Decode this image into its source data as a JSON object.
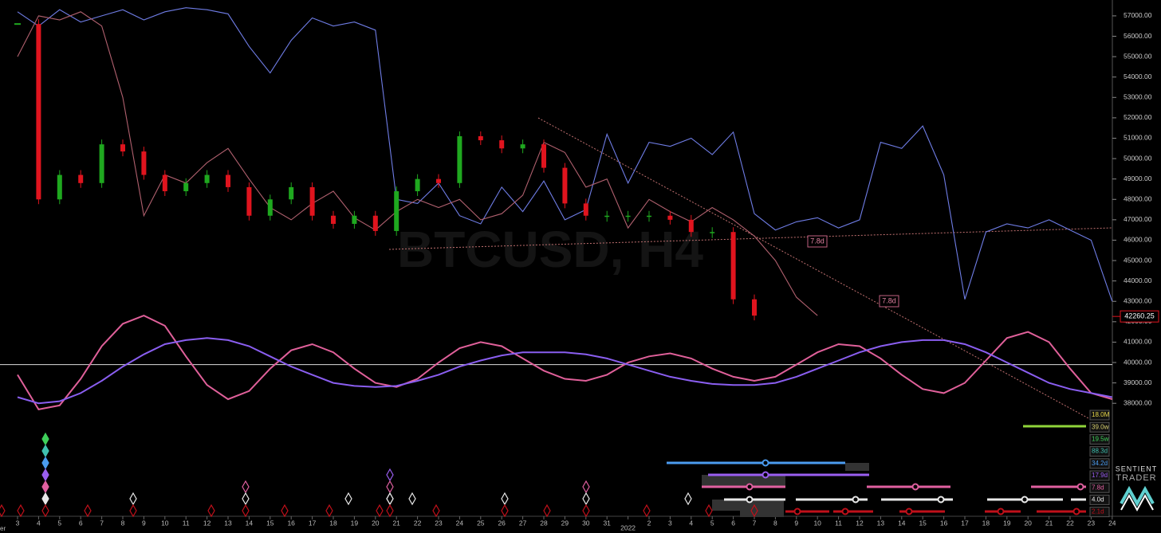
{
  "chart_data": {
    "type": "candlestick",
    "title": "BTCUSD, H4",
    "x_edge_label": "er",
    "categories": [
      "3",
      "4",
      "5",
      "6",
      "7",
      "8",
      "9",
      "10",
      "11",
      "12",
      "13",
      "14",
      "15",
      "16",
      "17",
      "18",
      "19",
      "20",
      "21",
      "22",
      "23",
      "24",
      "25",
      "26",
      "27",
      "28",
      "29",
      "30",
      "31",
      "2022",
      "2",
      "3",
      "4",
      "5",
      "6",
      "7",
      "8",
      "9",
      "10",
      "11",
      "12",
      "13",
      "14",
      "15",
      "16",
      "17",
      "18",
      "19",
      "20",
      "21",
      "22",
      "23",
      "24"
    ],
    "ylim": [
      37500,
      57700
    ],
    "yticks": [
      {
        "value": 38000,
        "label": "38000.00"
      },
      {
        "value": 39000,
        "label": "39000.00"
      },
      {
        "value": 40000,
        "label": "40000.00"
      },
      {
        "value": 41000,
        "label": "41000.00"
      },
      {
        "value": 42000,
        "label": "42000.00"
      },
      {
        "value": 43000,
        "label": "43000.00"
      },
      {
        "value": 44000,
        "label": "44000.00"
      },
      {
        "value": 45000,
        "label": "45000.00"
      },
      {
        "value": 46000,
        "label": "46000.00"
      },
      {
        "value": 47000,
        "label": "47000.00"
      },
      {
        "value": 48000,
        "label": "48000.00"
      },
      {
        "value": 49000,
        "label": "49000.00"
      },
      {
        "value": 50000,
        "label": "50000.00"
      },
      {
        "value": 51000,
        "label": "51000.00"
      },
      {
        "value": 52000,
        "label": "52000.00"
      },
      {
        "value": 53000,
        "label": "53000.00"
      },
      {
        "value": 54000,
        "label": "54000.00"
      },
      {
        "value": 55000,
        "label": "55000.00"
      },
      {
        "value": 56000,
        "label": "56000.00"
      },
      {
        "value": 57000,
        "label": "57000.00"
      }
    ],
    "price": {
      "up_color": "#1fa81f",
      "down_color": "#e0141e",
      "values": [
        56600,
        48000,
        49200,
        48800,
        50700,
        50350,
        49200,
        48400,
        48800,
        49200,
        48600,
        47200,
        48000,
        48600,
        47200,
        46800,
        47200,
        46450,
        48400,
        49000,
        48800,
        51100,
        50900,
        50500,
        50700,
        49550,
        47800,
        47200,
        47200,
        47200,
        47200,
        47000,
        46400,
        46400,
        43100,
        42300,
        null,
        null,
        null,
        null,
        null,
        null,
        null,
        null,
        null,
        null,
        null,
        null,
        null,
        null,
        null,
        null,
        null
      ]
    },
    "last_price": 42260.25,
    "reference_line": 39900,
    "series": [
      {
        "color": "#6f7de6",
        "values": [
          57200,
          56500,
          57300,
          56700,
          57000,
          57300,
          56800,
          57200,
          57400,
          57300,
          57100,
          55500,
          54200,
          55800,
          56900,
          56500,
          56700,
          56300,
          48000,
          47800,
          48800,
          47200,
          46800,
          48600,
          47400,
          48900,
          47000,
          47500,
          51200,
          48800,
          50800,
          50600,
          51000,
          50200,
          51300,
          47300,
          46500,
          46900,
          47100,
          46600,
          47000,
          50800,
          50500,
          51600,
          49200,
          43100,
          46400,
          46800,
          46600,
          47000,
          46500,
          46000,
          43000
        ]
      },
      {
        "color": "#b0606e",
        "values": [
          55000,
          57000,
          56800,
          57200,
          56500,
          53000,
          47200,
          49200,
          48800,
          49800,
          50500,
          49000,
          47600,
          47000,
          47800,
          48400,
          47100,
          46500,
          47400,
          48000,
          47600,
          48000,
          47000,
          47300,
          48200,
          50800,
          50300,
          48600,
          49000,
          46600,
          48000,
          47400,
          46900,
          47600,
          47000,
          46200,
          45000,
          43200,
          42300,
          null,
          null,
          null,
          null,
          null,
          null,
          null,
          null,
          null,
          null,
          null,
          null,
          null,
          null
        ]
      },
      {
        "color": "#e0609a",
        "values": [
          39400,
          37700,
          37900,
          39200,
          40800,
          41900,
          42300,
          41800,
          40300,
          38900,
          38200,
          38600,
          39700,
          40600,
          40900,
          40500,
          39700,
          39000,
          38800,
          39200,
          40000,
          40700,
          41000,
          40800,
          40200,
          39600,
          39200,
          39100,
          39400,
          40000,
          40300,
          40450,
          40200,
          39700,
          39300,
          39100,
          39300,
          39900,
          40500,
          40900,
          40800,
          40200,
          39400,
          38700,
          38500,
          39000,
          40100,
          41200,
          41500,
          41000,
          39700,
          38500,
          38200
        ]
      },
      {
        "color": "#8a5ef0",
        "values": [
          38300,
          38000,
          38100,
          38500,
          39100,
          39800,
          40400,
          40900,
          41100,
          41200,
          41100,
          40800,
          40300,
          39800,
          39400,
          39000,
          38850,
          38800,
          38850,
          39100,
          39400,
          39800,
          40100,
          40350,
          40500,
          40500,
          40500,
          40400,
          40200,
          39900,
          39600,
          39300,
          39100,
          38950,
          38900,
          38900,
          39000,
          39300,
          39700,
          40100,
          40500,
          40800,
          41000,
          41100,
          41100,
          40900,
          40500,
          40000,
          39500,
          39000,
          38700,
          38500,
          38300
        ]
      }
    ],
    "annotations": [
      "7.8d",
      "7.8d"
    ],
    "cycles": [
      {
        "label": "18.0M",
        "color": "#e8d84a"
      },
      {
        "label": "39.0w",
        "color": "#d8d070"
      },
      {
        "label": "19.5w",
        "color": "#3fcf5a"
      },
      {
        "label": "88.3d",
        "color": "#3fc0b0"
      },
      {
        "label": "34.2d",
        "color": "#4b9cf0"
      },
      {
        "label": "17.9d",
        "color": "#9a5ef0"
      },
      {
        "label": "7.8d",
        "color": "#e060a0"
      },
      {
        "label": "4.0d",
        "color": "#e8e8e8"
      },
      {
        "label": "2.1d",
        "color": "#c0101a"
      }
    ],
    "logo": {
      "line1": "SENTIENT",
      "line2": "TRADER"
    }
  }
}
